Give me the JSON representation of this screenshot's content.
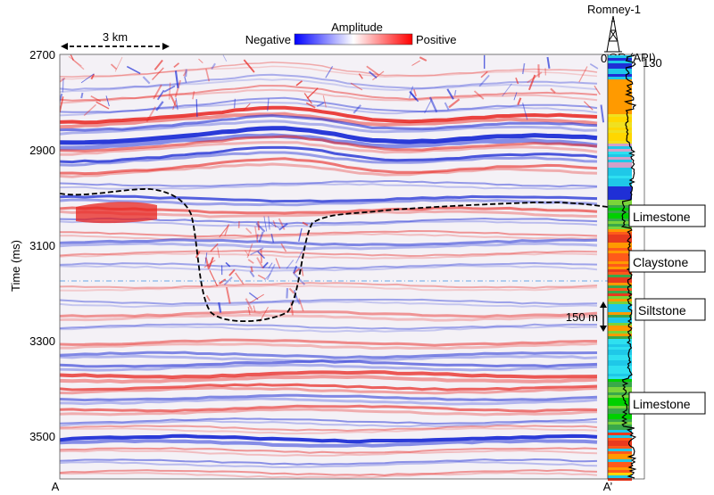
{
  "colorbar": {
    "title": "Amplitude",
    "negative_label": "Negative",
    "positive_label": "Positive",
    "colors": [
      "#0000ff",
      "#ffffff",
      "#ff0000"
    ]
  },
  "scale_bar": {
    "label": "3 km"
  },
  "well": {
    "name": "Romney-1",
    "log_label": "GR (API)",
    "log_min": "0",
    "log_max": "130",
    "thickness_label": "150 m",
    "lithology_labels": [
      "Limestone",
      "Claystone",
      "Siltstone",
      "Limestone"
    ]
  },
  "axis": {
    "ylabel": "Time (ms)",
    "ticks": [
      "2700",
      "2900",
      "3100",
      "3300",
      "3500"
    ]
  },
  "section": {
    "start_label": "A",
    "end_label": "A’"
  },
  "colors": {
    "horizon_line": "#000000",
    "reference_line": "#6aa6e8"
  }
}
